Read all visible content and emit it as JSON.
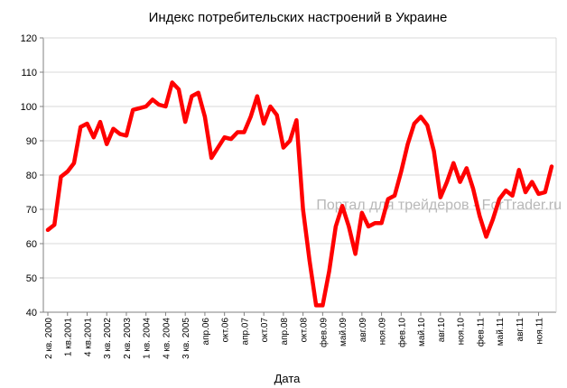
{
  "chart_data": {
    "type": "line",
    "title": "Индекс потребительских настроений в Украине",
    "xlabel": "Дата",
    "ylabel": "",
    "ylim": [
      40,
      120
    ],
    "yticks": [
      40,
      50,
      60,
      70,
      80,
      90,
      100,
      110,
      120
    ],
    "grid": true,
    "legend": "none",
    "watermark": "Портал для трейдеров - ForTrader.ru",
    "x_tick_labels": [
      "2 кв. 2000",
      "1 кв.2001",
      "4 кв.2001",
      "3 кв. 2002",
      "2 кв. 2003",
      "1 кв. 2004",
      "4 кв. 2004",
      "3 кв. 2005",
      "апр.06",
      "окт.06",
      "апр.07",
      "окт.07",
      "апр.08",
      "окт.08",
      "фев.09",
      "май.09",
      "авг.09",
      "ноя.09",
      "фев.10",
      "май.10",
      "авг.10",
      "ноя.10",
      "фев.11",
      "май.11",
      "авг.11",
      "ноя.11"
    ],
    "x_tick_index": [
      0,
      3,
      6,
      9,
      12,
      15,
      18,
      21,
      24,
      27,
      30,
      33,
      36,
      39,
      42,
      45,
      48,
      51,
      54,
      57,
      60,
      63,
      66,
      69,
      72,
      75
    ],
    "series": [
      {
        "color": "#ff0000",
        "values": [
          64,
          65.5,
          79.5,
          81,
          83.5,
          94,
          95,
          91,
          95.5,
          89,
          93.5,
          92,
          91.5,
          99,
          99.5,
          100,
          102,
          100.5,
          100,
          107,
          105,
          95.5,
          103,
          104,
          97,
          85,
          88,
          91,
          90.5,
          92.5,
          92.5,
          97,
          103,
          95,
          100,
          97.5,
          88,
          90,
          96,
          70,
          55,
          42,
          42,
          52,
          65,
          71,
          65,
          57,
          69,
          65,
          66,
          66,
          73,
          74,
          81,
          89,
          95,
          97,
          94.5,
          87,
          73.5,
          78,
          83.5,
          78,
          82,
          76,
          68,
          62,
          67,
          73,
          75.5,
          74,
          81.5,
          75,
          78,
          74.5,
          75,
          82.5
        ]
      }
    ]
  }
}
